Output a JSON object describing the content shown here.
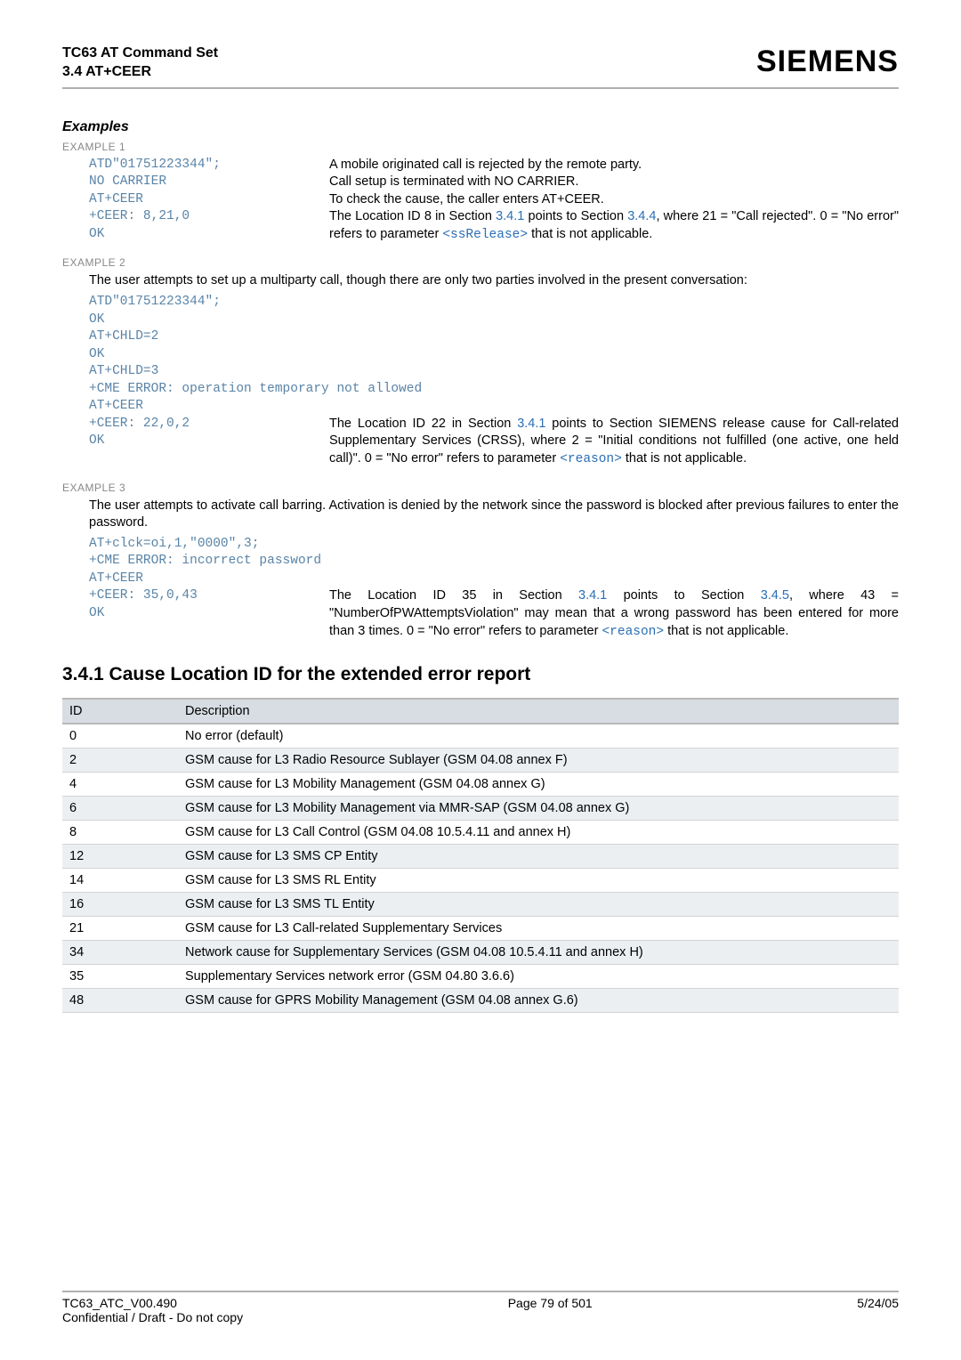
{
  "header": {
    "title_line1": "TC63 AT Command Set",
    "title_line2": "3.4 AT+CEER",
    "brand": "SIEMENS"
  },
  "examples_heading": "Examples",
  "ex1": {
    "label": "EXAMPLE 1",
    "rows": [
      {
        "code": "ATD\"01751223344\";",
        "expl": "A mobile originated call is rejected by the remote party."
      },
      {
        "code": "NO CARRIER",
        "expl": "Call setup is terminated with NO CARRIER."
      },
      {
        "code": "AT+CEER",
        "expl": "To check the cause, the caller enters AT+CEER."
      }
    ],
    "row4_code": "+CEER: 8,21,0",
    "row4_a": "The Location ID 8 in Section ",
    "row4_link1": "3.4.1",
    "row4_b": " points to Section ",
    "row4_link2": "3.4.4",
    "row4_c": ", where 21 = \"Call rejected\". 0 = \"No error\" refers to parameter ",
    "row4_mono": "<ssRelease>",
    "row4_d": " that is not applicable.",
    "row5_code": "OK"
  },
  "ex2": {
    "label": "EXAMPLE 2",
    "intro": "The user attempts to set up a multiparty call, though there are only two parties involved in the present conversation:",
    "lines": [
      "ATD\"01751223344\";",
      "OK",
      "AT+CHLD=2",
      "OK",
      "AT+CHLD=3",
      "+CME ERROR: operation temporary not allowed",
      "AT+CEER"
    ],
    "res_code": "+CEER: 22,0,2",
    "res_a": "The Location ID 22 in Section ",
    "res_link1": "3.4.1",
    "res_b": " points to Section SIEMENS release cause for Call-related Supplementary Services (CRSS), where 2 = \"Initial conditions not fulfilled (one active, one held call)\". 0 = \"No error\" refers to parameter ",
    "res_mono": "<reason>",
    "res_c": " that is not applicable.",
    "ok": "OK"
  },
  "ex3": {
    "label": "EXAMPLE 3",
    "intro": "The user attempts to activate call barring. Activation is denied by the network since the password is blocked after previous failures to enter the password.",
    "lines": [
      "AT+clck=oi,1,\"0000\",3;",
      "+CME ERROR: incorrect password",
      "AT+CEER"
    ],
    "res_code": "+CEER: 35,0,43",
    "res_a": "The Location ID 35 in Section ",
    "res_link1": "3.4.1",
    "res_b": " points to Section ",
    "res_link2": "3.4.5",
    "res_c": ", where 43 = \"NumberOfPWAttemptsViolation\" may mean that a wrong password has been entered for more than 3 times. 0 = \"No error\" refers to parameter ",
    "res_mono": "<reason>",
    "res_d": " that is not applicable.",
    "ok": "OK"
  },
  "section": {
    "title": "3.4.1    Cause Location ID for the extended error report",
    "head_id": "ID",
    "head_desc": "Description",
    "rows": [
      {
        "id": "0",
        "desc": "No error (default)"
      },
      {
        "id": "2",
        "desc": "GSM cause for L3 Radio Resource Sublayer (GSM 04.08 annex F)"
      },
      {
        "id": "4",
        "desc": "GSM cause for L3 Mobility Management (GSM 04.08 annex G)"
      },
      {
        "id": "6",
        "desc": "GSM cause for L3 Mobility Management via MMR-SAP (GSM 04.08 annex G)"
      },
      {
        "id": "8",
        "desc": "GSM cause for L3 Call Control (GSM 04.08 10.5.4.11 and annex H)"
      },
      {
        "id": "12",
        "desc": "GSM cause for L3 SMS CP Entity"
      },
      {
        "id": "14",
        "desc": "GSM cause for L3 SMS RL Entity"
      },
      {
        "id": "16",
        "desc": "GSM cause for L3 SMS TL Entity"
      },
      {
        "id": "21",
        "desc": "GSM cause for L3 Call-related Supplementary Services"
      },
      {
        "id": "34",
        "desc": "Network cause for Supplementary Services (GSM 04.08 10.5.4.11 and annex H)"
      },
      {
        "id": "35",
        "desc": "Supplementary Services network error (GSM 04.80 3.6.6)"
      },
      {
        "id": "48",
        "desc": "GSM cause for GPRS Mobility Management (GSM 04.08 annex G.6)"
      }
    ]
  },
  "footer": {
    "left1": "TC63_ATC_V00.490",
    "left2": "Confidential / Draft - Do not copy",
    "center": "Page 79 of 501",
    "right": "5/24/05"
  }
}
